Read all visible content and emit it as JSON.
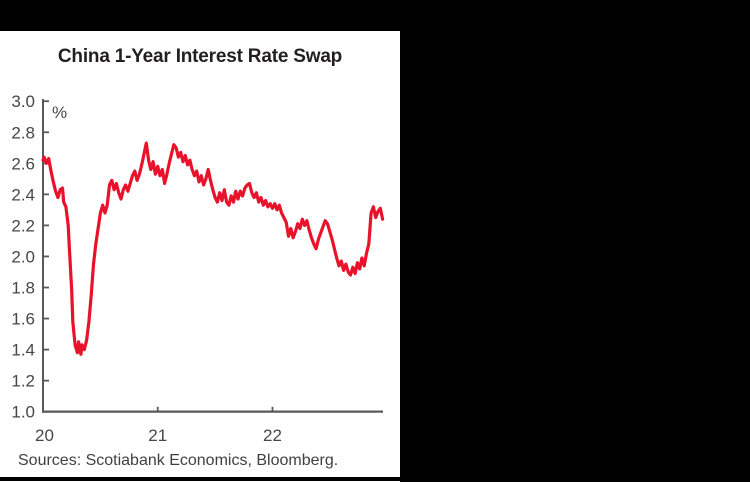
{
  "window": {
    "background_color": "#000000",
    "panel_background_color": "#ffffff"
  },
  "chart": {
    "title": "China 1-Year Interest Rate Swap",
    "unit_label": "%",
    "source_note": "Sources: Scotiabank Economics, Bloomberg.",
    "colors": {
      "line": "#e9122b",
      "axis_line": "#58595b",
      "tick_label": "#464648",
      "title_text": "#231f20",
      "source_text": "#414042",
      "bottom_rule": "#000000"
    }
  },
  "chart_data": {
    "type": "line",
    "title": "China 1-Year Interest Rate Swap",
    "ylabel": "%",
    "xlabel": "",
    "grid": false,
    "legend": "none",
    "ylim": [
      1.0,
      3.0
    ],
    "y_ticks": [
      1.0,
      1.2,
      1.4,
      1.6,
      1.8,
      2.0,
      2.2,
      2.4,
      2.6,
      2.8,
      3.0
    ],
    "xlim": [
      2020,
      2022.96
    ],
    "x_tick_values": [
      2020,
      2021,
      2022
    ],
    "x_tick_labels": [
      "20",
      "21",
      "22"
    ],
    "series": [
      {
        "name": "China 1-year interest rate swap (%)",
        "color": "#e9122b",
        "x": [
          2020.0,
          2020.01,
          2020.03,
          2020.05,
          2020.07,
          2020.09,
          2020.11,
          2020.13,
          2020.15,
          2020.17,
          2020.18,
          2020.2,
          2020.22,
          2020.23,
          2020.25,
          2020.26,
          2020.28,
          2020.3,
          2020.31,
          2020.33,
          2020.34,
          2020.36,
          2020.38,
          2020.4,
          2020.42,
          2020.44,
          2020.46,
          2020.48,
          2020.5,
          2020.52,
          2020.54,
          2020.56,
          2020.58,
          2020.6,
          2020.62,
          2020.64,
          2020.66,
          2020.68,
          2020.7,
          2020.72,
          2020.74,
          2020.76,
          2020.78,
          2020.8,
          2020.82,
          2020.84,
          2020.86,
          2020.88,
          2020.9,
          2020.92,
          2020.94,
          2020.96,
          2020.98,
          2021.0,
          2021.02,
          2021.04,
          2021.06,
          2021.08,
          2021.1,
          2021.12,
          2021.14,
          2021.16,
          2021.18,
          2021.2,
          2021.22,
          2021.24,
          2021.26,
          2021.28,
          2021.3,
          2021.32,
          2021.34,
          2021.36,
          2021.38,
          2021.4,
          2021.42,
          2021.44,
          2021.46,
          2021.48,
          2021.5,
          2021.52,
          2021.54,
          2021.56,
          2021.58,
          2021.6,
          2021.62,
          2021.64,
          2021.66,
          2021.68,
          2021.7,
          2021.72,
          2021.74,
          2021.76,
          2021.78,
          2021.8,
          2021.82,
          2021.84,
          2021.86,
          2021.88,
          2021.9,
          2021.92,
          2021.94,
          2021.96,
          2021.98,
          2022.0,
          2022.02,
          2022.04,
          2022.06,
          2022.08,
          2022.1,
          2022.12,
          2022.14,
          2022.16,
          2022.18,
          2022.2,
          2022.22,
          2022.24,
          2022.26,
          2022.28,
          2022.3,
          2022.32,
          2022.34,
          2022.36,
          2022.38,
          2022.4,
          2022.42,
          2022.44,
          2022.46,
          2022.48,
          2022.5,
          2022.52,
          2022.54,
          2022.56,
          2022.58,
          2022.6,
          2022.62,
          2022.64,
          2022.66,
          2022.68,
          2022.7,
          2022.72,
          2022.74,
          2022.76,
          2022.78,
          2022.8,
          2022.82,
          2022.84,
          2022.86,
          2022.88,
          2022.9,
          2022.92,
          2022.94,
          2022.96
        ],
        "y": [
          2.62,
          2.64,
          2.6,
          2.63,
          2.55,
          2.48,
          2.42,
          2.38,
          2.43,
          2.44,
          2.35,
          2.32,
          2.2,
          2.05,
          1.78,
          1.58,
          1.43,
          1.38,
          1.45,
          1.37,
          1.43,
          1.4,
          1.46,
          1.58,
          1.75,
          1.95,
          2.08,
          2.18,
          2.28,
          2.33,
          2.28,
          2.33,
          2.46,
          2.49,
          2.43,
          2.47,
          2.41,
          2.37,
          2.43,
          2.46,
          2.42,
          2.47,
          2.52,
          2.55,
          2.49,
          2.53,
          2.59,
          2.66,
          2.73,
          2.62,
          2.56,
          2.61,
          2.53,
          2.58,
          2.52,
          2.56,
          2.47,
          2.53,
          2.6,
          2.66,
          2.72,
          2.7,
          2.64,
          2.67,
          2.61,
          2.65,
          2.59,
          2.62,
          2.56,
          2.52,
          2.55,
          2.48,
          2.52,
          2.46,
          2.5,
          2.56,
          2.49,
          2.43,
          2.38,
          2.35,
          2.41,
          2.36,
          2.43,
          2.35,
          2.33,
          2.39,
          2.35,
          2.42,
          2.37,
          2.42,
          2.39,
          2.44,
          2.46,
          2.47,
          2.41,
          2.38,
          2.41,
          2.35,
          2.38,
          2.33,
          2.36,
          2.32,
          2.34,
          2.31,
          2.34,
          2.3,
          2.33,
          2.28,
          2.25,
          2.22,
          2.13,
          2.18,
          2.12,
          2.16,
          2.21,
          2.18,
          2.24,
          2.2,
          2.23,
          2.17,
          2.12,
          2.08,
          2.05,
          2.11,
          2.15,
          2.19,
          2.23,
          2.21,
          2.16,
          2.11,
          2.05,
          1.99,
          1.94,
          1.97,
          1.91,
          1.95,
          1.9,
          1.88,
          1.93,
          1.89,
          1.96,
          1.92,
          1.99,
          1.94,
          2.02,
          2.08,
          2.28,
          2.32,
          2.25,
          2.29,
          2.31,
          2.24
        ]
      }
    ],
    "annotations": [
      "%"
    ],
    "source": "Sources: Scotiabank Economics, Bloomberg."
  }
}
